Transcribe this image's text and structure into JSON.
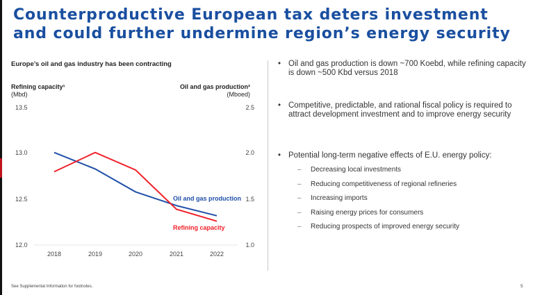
{
  "slide": {
    "title": "Counterproductive European tax deters investment and could further undermine region’s energy security",
    "page_number": "5",
    "footer": "See Supplemental Information for footnotes.",
    "colors": {
      "title": "#1a4fa0",
      "accent_red": "#c0121c"
    }
  },
  "chart_data": {
    "type": "line",
    "title": "Europe’s oil and gas industry has been contracting",
    "x": [
      "2018",
      "2019",
      "2020",
      "2021",
      "2022"
    ],
    "left_axis": {
      "label": "Refining capacity¹",
      "unit": "(Mbd)",
      "range": [
        12.0,
        13.5
      ],
      "ticks": [
        "12.0",
        "12.5",
        "13.0",
        "13.5"
      ]
    },
    "right_axis": {
      "label": "Oil and gas production²",
      "unit": "(Mboed)",
      "range": [
        1.0,
        2.5
      ],
      "ticks": [
        "1.0",
        "1.5",
        "2.0",
        "2.5"
      ]
    },
    "series": [
      {
        "name": "Oil and gas production",
        "axis": "right",
        "color": "#1f4fa8",
        "values": [
          2.01,
          1.83,
          1.58,
          1.43,
          1.32
        ]
      },
      {
        "name": "Refining capacity",
        "axis": "left",
        "color": "#f0202a",
        "values": [
          12.8,
          13.01,
          12.82,
          12.39,
          12.26
        ]
      }
    ],
    "grid": false,
    "legend": "inline-labels"
  },
  "bullets": {
    "items": [
      "Oil and gas production is down ~700 Koebd, while refining capacity is down ~500 Kbd versus 2018",
      "Competitive, predictable, and rational fiscal policy is required to attract development investment and to improve energy security",
      "Potential long-term negative effects of E.U. energy policy:"
    ],
    "bullet_glyph": "•",
    "dash_glyph": "–",
    "sub_items": [
      "Decreasing local investments",
      "Reducing competitiveness of regional refineries",
      "Increasing imports",
      "Raising energy prices for consumers",
      "Reducing prospects of improved energy security"
    ]
  }
}
